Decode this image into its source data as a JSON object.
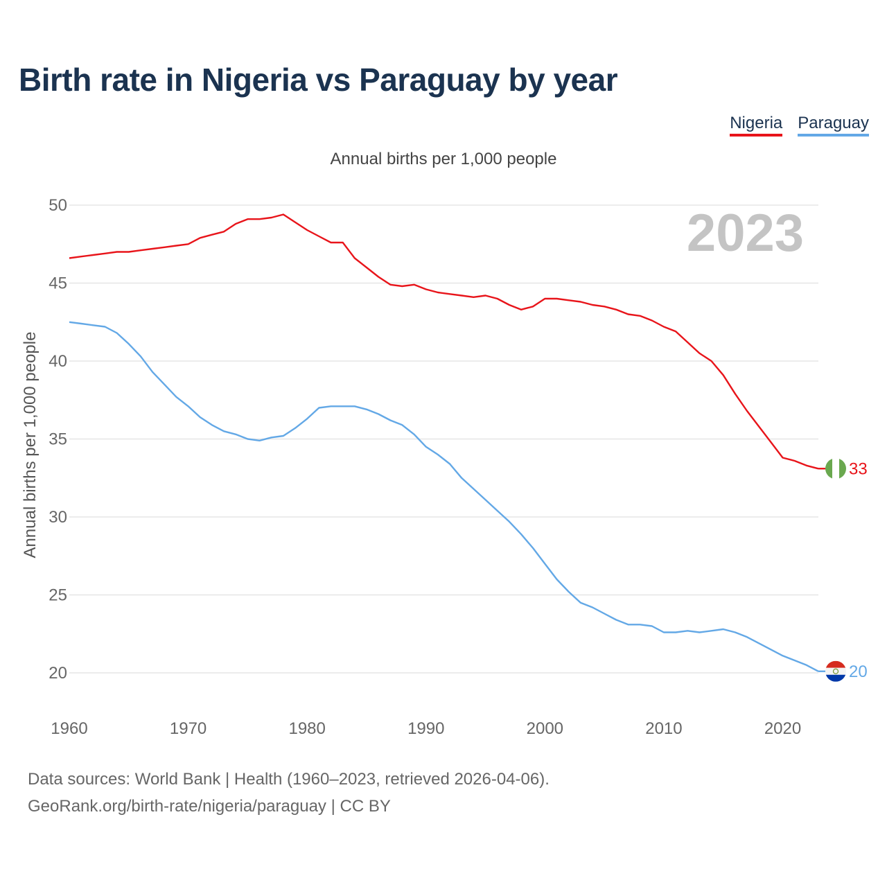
{
  "header": {
    "title": "Birth rate in Nigeria vs Paraguay by year"
  },
  "legend": {
    "items": [
      {
        "label": "Nigeria",
        "color": "#e8141a"
      },
      {
        "label": "Paraguay",
        "color": "#63a8e6"
      }
    ]
  },
  "footer": {
    "line1": "Data sources: World Bank | Health (1960–2023, retrieved 2026-04-06).",
    "line2": "GeoRank.org/birth-rate/nigeria/paraguay | CC BY"
  },
  "chart_data": {
    "type": "line",
    "title": "Birth rate in Nigeria vs Paraguay by year",
    "subtitle": "Annual births per 1,000 people",
    "ylabel": "Annual births per 1,000 people",
    "xlabel": "",
    "year_label": "2023",
    "xlim": [
      1960,
      2023
    ],
    "ylim": [
      18,
      50
    ],
    "x_ticks": [
      1960,
      1970,
      1980,
      1990,
      2000,
      2010,
      2020
    ],
    "y_ticks": [
      20,
      25,
      30,
      35,
      40,
      45,
      50
    ],
    "grid": true,
    "legend_position": "top-right",
    "x": [
      1960,
      1961,
      1962,
      1963,
      1964,
      1965,
      1966,
      1967,
      1968,
      1969,
      1970,
      1971,
      1972,
      1973,
      1974,
      1975,
      1976,
      1977,
      1978,
      1979,
      1980,
      1981,
      1982,
      1983,
      1984,
      1985,
      1986,
      1987,
      1988,
      1989,
      1990,
      1991,
      1992,
      1993,
      1994,
      1995,
      1996,
      1997,
      1998,
      1999,
      2000,
      2001,
      2002,
      2003,
      2004,
      2005,
      2006,
      2007,
      2008,
      2009,
      2010,
      2011,
      2012,
      2013,
      2014,
      2015,
      2016,
      2017,
      2018,
      2019,
      2020,
      2021,
      2022,
      2023
    ],
    "series": [
      {
        "name": "Nigeria",
        "color": "#e8141a",
        "end_label": "33",
        "values": [
          46.6,
          46.7,
          46.8,
          46.9,
          47.0,
          47.0,
          47.1,
          47.2,
          47.3,
          47.4,
          47.5,
          47.9,
          48.1,
          48.3,
          48.8,
          49.1,
          49.1,
          49.2,
          49.4,
          48.9,
          48.4,
          48.0,
          47.6,
          47.6,
          46.6,
          46.0,
          45.4,
          44.9,
          44.8,
          44.9,
          44.6,
          44.4,
          44.3,
          44.2,
          44.1,
          44.2,
          44.0,
          43.6,
          43.3,
          43.5,
          44.0,
          44.0,
          43.9,
          43.8,
          43.6,
          43.5,
          43.3,
          43.0,
          42.9,
          42.6,
          42.2,
          41.9,
          41.2,
          40.5,
          40.0,
          39.1,
          37.9,
          36.8,
          35.8,
          34.8,
          33.8,
          33.6,
          33.3,
          33.1
        ]
      },
      {
        "name": "Paraguay",
        "color": "#63a8e6",
        "end_label": "20",
        "values": [
          42.5,
          42.4,
          42.3,
          42.2,
          41.8,
          41.1,
          40.3,
          39.3,
          38.5,
          37.7,
          37.1,
          36.4,
          35.9,
          35.5,
          35.3,
          35.0,
          34.9,
          35.1,
          35.2,
          35.7,
          36.3,
          37.0,
          37.1,
          37.1,
          37.1,
          36.9,
          36.6,
          36.2,
          35.9,
          35.3,
          34.5,
          34.0,
          33.4,
          32.5,
          31.8,
          31.1,
          30.4,
          29.7,
          28.9,
          28.0,
          27.0,
          26.0,
          25.2,
          24.5,
          24.2,
          23.8,
          23.4,
          23.1,
          23.1,
          23.0,
          22.6,
          22.6,
          22.7,
          22.6,
          22.7,
          22.8,
          22.6,
          22.3,
          21.9,
          21.5,
          21.1,
          20.8,
          20.5,
          20.1
        ]
      }
    ]
  }
}
